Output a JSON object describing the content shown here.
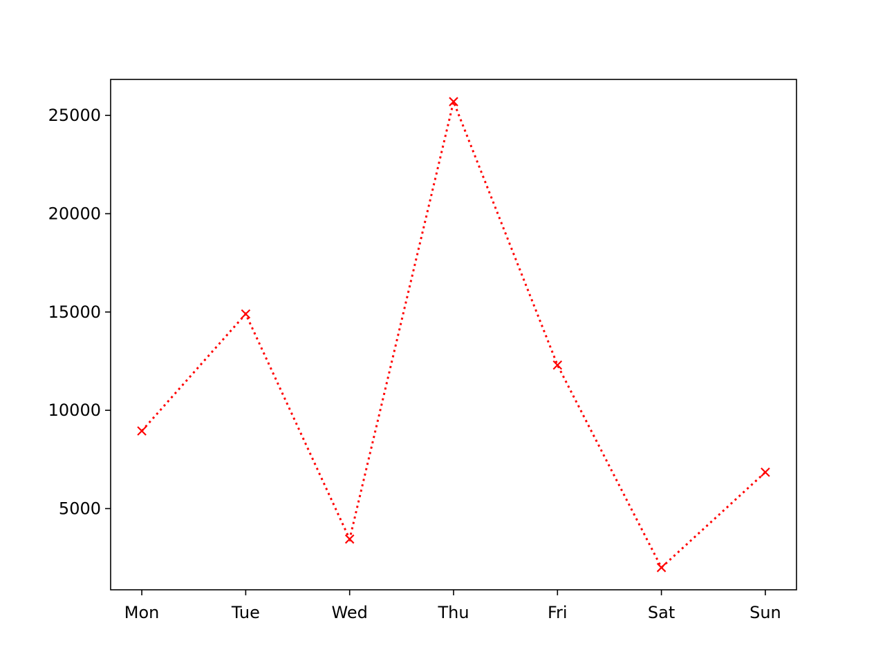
{
  "chart_data": {
    "type": "line",
    "title": "",
    "xlabel": "",
    "ylabel": "",
    "categories": [
      "Mon",
      "Tue",
      "Wed",
      "Thu",
      "Fri",
      "Sat",
      "Sun"
    ],
    "series": [
      {
        "values": [
          8950,
          14900,
          3450,
          25700,
          12300,
          2000,
          6850
        ],
        "color": "#ff0000",
        "line_style": "dotted",
        "marker": "x"
      }
    ],
    "ylim": [
      870,
      26830
    ],
    "yticks": [
      5000,
      10000,
      15000,
      20000,
      25000
    ],
    "grid": false,
    "legend": "none"
  }
}
